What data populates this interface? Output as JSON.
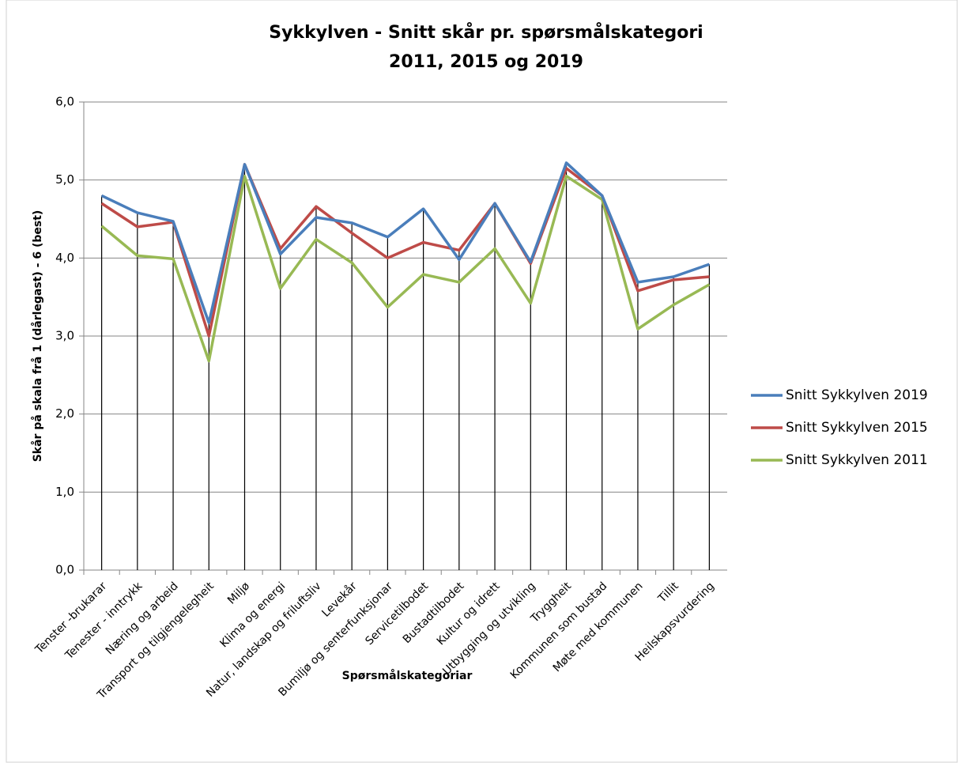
{
  "chart_data": {
    "type": "line",
    "title_lines": [
      "Sykkylven - Snitt skår pr. spørsmålskategori",
      "2011, 2015 og 2019"
    ],
    "ylabel": "Skår på skala frå 1 (dårlegast) - 6 (best)",
    "xlabel": "Spørsmålskategoriar",
    "categories": [
      "Tenster -brukarar",
      "Tenester - inntrykk",
      "Næring og arbeid",
      "Transport og tilgjengelegheit",
      "Miljø",
      "Klima og energi",
      "Natur,  landskap og friluftsliv",
      "Levekår",
      "Bumiljø og senterfunksjonar",
      "Servicetilbodet",
      "Bustadtilbodet",
      "Kultur og idrett",
      "Utbygging og utvikling",
      "Tryggheit",
      "Kommunen som bustad",
      "Møte med kommunen",
      "Tillit",
      "Heilskapsvurdering"
    ],
    "series": [
      {
        "name": "Snitt Sykkylven 2019",
        "color": "#4a7ebb",
        "values": [
          4.8,
          4.58,
          4.47,
          3.17,
          5.2,
          4.05,
          4.52,
          4.45,
          4.27,
          4.63,
          3.98,
          4.7,
          3.95,
          5.22,
          4.8,
          3.69,
          3.76,
          3.92
        ]
      },
      {
        "name": "Snitt Sykkylven 2015",
        "color": "#be4b48",
        "values": [
          4.7,
          4.4,
          4.46,
          3.0,
          5.2,
          4.12,
          4.66,
          4.32,
          4.0,
          4.2,
          4.1,
          4.7,
          3.93,
          5.15,
          4.8,
          3.58,
          3.72,
          3.76
        ]
      },
      {
        "name": "Snitt Sykkylven 2011",
        "color": "#98b954",
        "values": [
          4.41,
          4.03,
          3.99,
          2.68,
          5.05,
          3.61,
          4.24,
          3.94,
          3.37,
          3.79,
          3.69,
          4.12,
          3.42,
          5.05,
          4.75,
          3.09,
          3.4,
          3.66
        ]
      }
    ],
    "ylim": [
      0,
      6
    ],
    "yticks": [
      {
        "value": 0,
        "label": "0,0"
      },
      {
        "value": 1,
        "label": "1,0"
      },
      {
        "value": 2,
        "label": "2,0"
      },
      {
        "value": 3,
        "label": "3,0"
      },
      {
        "value": 4,
        "label": "4,0"
      },
      {
        "value": 5,
        "label": "5,0"
      },
      {
        "value": 6,
        "label": "6,0"
      }
    ],
    "grid": true,
    "drop_lines": true,
    "legend": "right"
  }
}
